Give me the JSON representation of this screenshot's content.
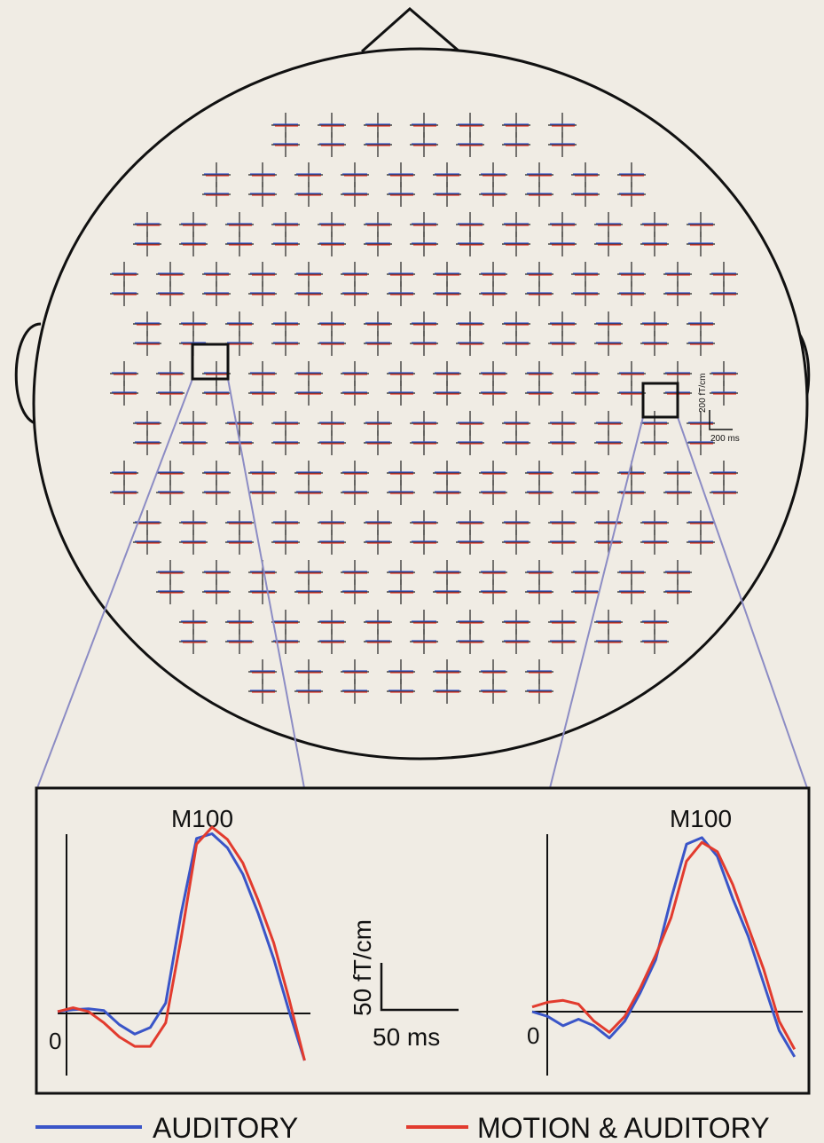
{
  "head_scale": {
    "y_label": "200 fT/cm",
    "x_label": "200 ms"
  },
  "legend": [
    {
      "name": "AUDITORY",
      "color": "#3a55c8"
    },
    {
      "name": "MOTION & AUDITORY",
      "color": "#e23b2e"
    }
  ],
  "scale_bar": {
    "y_label": "50 fT/cm",
    "x_label": "50 ms"
  },
  "panels": [
    {
      "title": "M100",
      "zero_label": "0",
      "x": [
        0,
        10,
        20,
        30,
        40,
        50,
        60,
        70,
        80,
        90,
        100,
        110,
        120,
        130,
        140,
        150,
        160
      ],
      "series": [
        {
          "values": [
            2,
            4,
            5,
            3,
            -12,
            -22,
            -15,
            11,
            106,
            186,
            191,
            176,
            148,
            106,
            58,
            2,
            -50
          ]
        },
        {
          "values": [
            2,
            6,
            2,
            -10,
            -25,
            -35,
            -35,
            -10,
            80,
            180,
            198,
            185,
            160,
            120,
            75,
            15,
            -50
          ]
        }
      ]
    },
    {
      "title": "M100",
      "zero_label": "0",
      "x": [
        0,
        10,
        20,
        30,
        40,
        50,
        60,
        70,
        80,
        90,
        100,
        110,
        120,
        130,
        140,
        150,
        160,
        170
      ],
      "series": [
        {
          "values": [
            0,
            -5,
            -15,
            -8,
            -15,
            -28,
            -10,
            20,
            55,
            120,
            178,
            185,
            165,
            120,
            80,
            30,
            -20,
            -48
          ]
        },
        {
          "values": [
            5,
            10,
            12,
            8,
            -10,
            -22,
            -5,
            25,
            60,
            100,
            160,
            180,
            170,
            135,
            90,
            45,
            -10,
            -40
          ]
        }
      ]
    }
  ]
}
